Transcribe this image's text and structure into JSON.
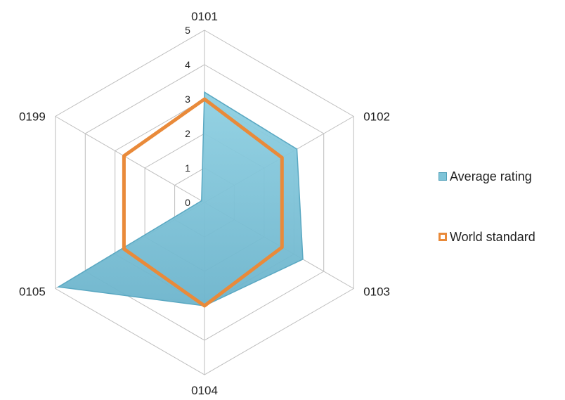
{
  "chart_data": {
    "type": "radar",
    "categories": [
      "0101",
      "0102",
      "0103",
      "0104",
      "0105",
      "0199"
    ],
    "rlim": [
      0,
      5
    ],
    "ticks": [
      "0",
      "1",
      "2",
      "3",
      "4",
      "5"
    ],
    "series": [
      {
        "name": "Average rating",
        "values": [
          3.2,
          3.1,
          3.3,
          3.0,
          4.9,
          0.1
        ],
        "color": "#7fc4d8"
      },
      {
        "name": "World standard",
        "values": [
          3.0,
          2.6,
          2.6,
          3.0,
          2.7,
          2.7
        ],
        "color": "#e98a3a"
      }
    ],
    "grid": true,
    "legend_position": "right"
  }
}
